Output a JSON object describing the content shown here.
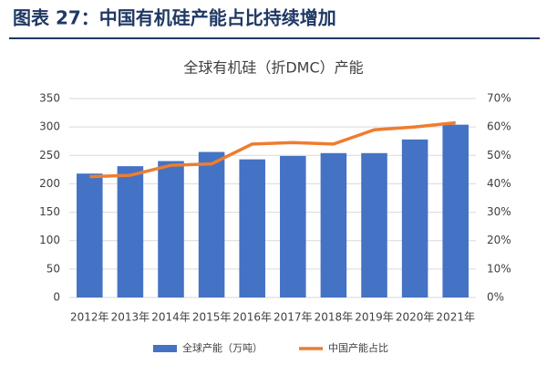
{
  "header": "图表 27：中国有机硅产能占比持续增加",
  "chart_data": {
    "type": "bar",
    "title": "全球有机硅（折DMC）产能",
    "categories": [
      "2012年",
      "2013年",
      "2014年",
      "2015年",
      "2016年",
      "2017年",
      "2018年",
      "2019年",
      "2020年",
      "2021年"
    ],
    "series": [
      {
        "name": "全球产能（万吨）",
        "type": "bar",
        "color": "#4472c4",
        "values": [
          218,
          231,
          240,
          256,
          243,
          249,
          254,
          254,
          278,
          304
        ]
      },
      {
        "name": "中国产能占比",
        "type": "line",
        "axis": "y2",
        "color": "#ed7d31",
        "values": [
          42.5,
          43,
          46.5,
          47,
          54,
          54.5,
          54,
          59,
          60,
          61.5
        ]
      }
    ],
    "ylim": [
      0,
      350
    ],
    "yticks": [
      0,
      50,
      100,
      150,
      200,
      250,
      300,
      350
    ],
    "y2lim": [
      0,
      70
    ],
    "y2ticks": [
      {
        "value": 0,
        "label": "0%"
      },
      {
        "value": 10,
        "label": "10%"
      },
      {
        "value": 20,
        "label": "20%"
      },
      {
        "value": 30,
        "label": "30%"
      },
      {
        "value": 40,
        "label": "40%"
      },
      {
        "value": 50,
        "label": "50%"
      },
      {
        "value": 60,
        "label": "60%"
      },
      {
        "value": 70,
        "label": "70%"
      }
    ],
    "grid": true
  }
}
